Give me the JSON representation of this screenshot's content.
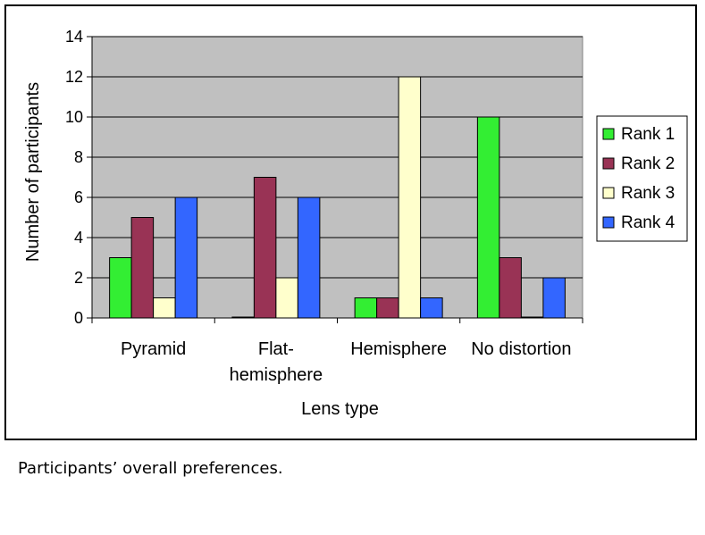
{
  "chart_data": {
    "type": "bar",
    "title": "",
    "xlabel": "Lens type",
    "ylabel": "Number of participants",
    "ylim": [
      0,
      14
    ],
    "yticks": [
      0,
      2,
      4,
      6,
      8,
      10,
      12,
      14
    ],
    "grid": true,
    "legend_position": "right",
    "categories": [
      [
        "Pyramid"
      ],
      [
        "Flat-",
        "hemisphere"
      ],
      [
        "Hemisphere"
      ],
      [
        "No distortion"
      ]
    ],
    "series": [
      {
        "name": "Rank 1",
        "color": "#33ee33",
        "values": [
          3,
          0,
          1,
          10
        ]
      },
      {
        "name": "Rank 2",
        "color": "#993355",
        "values": [
          5,
          7,
          1,
          3
        ]
      },
      {
        "name": "Rank 3",
        "color": "#ffffcc",
        "values": [
          1,
          2,
          12,
          0
        ]
      },
      {
        "name": "Rank 4",
        "color": "#3366ff",
        "values": [
          6,
          6,
          1,
          2
        ]
      }
    ],
    "plot_background": "#c0c0c0"
  },
  "caption": "Participants’ overall preferences."
}
